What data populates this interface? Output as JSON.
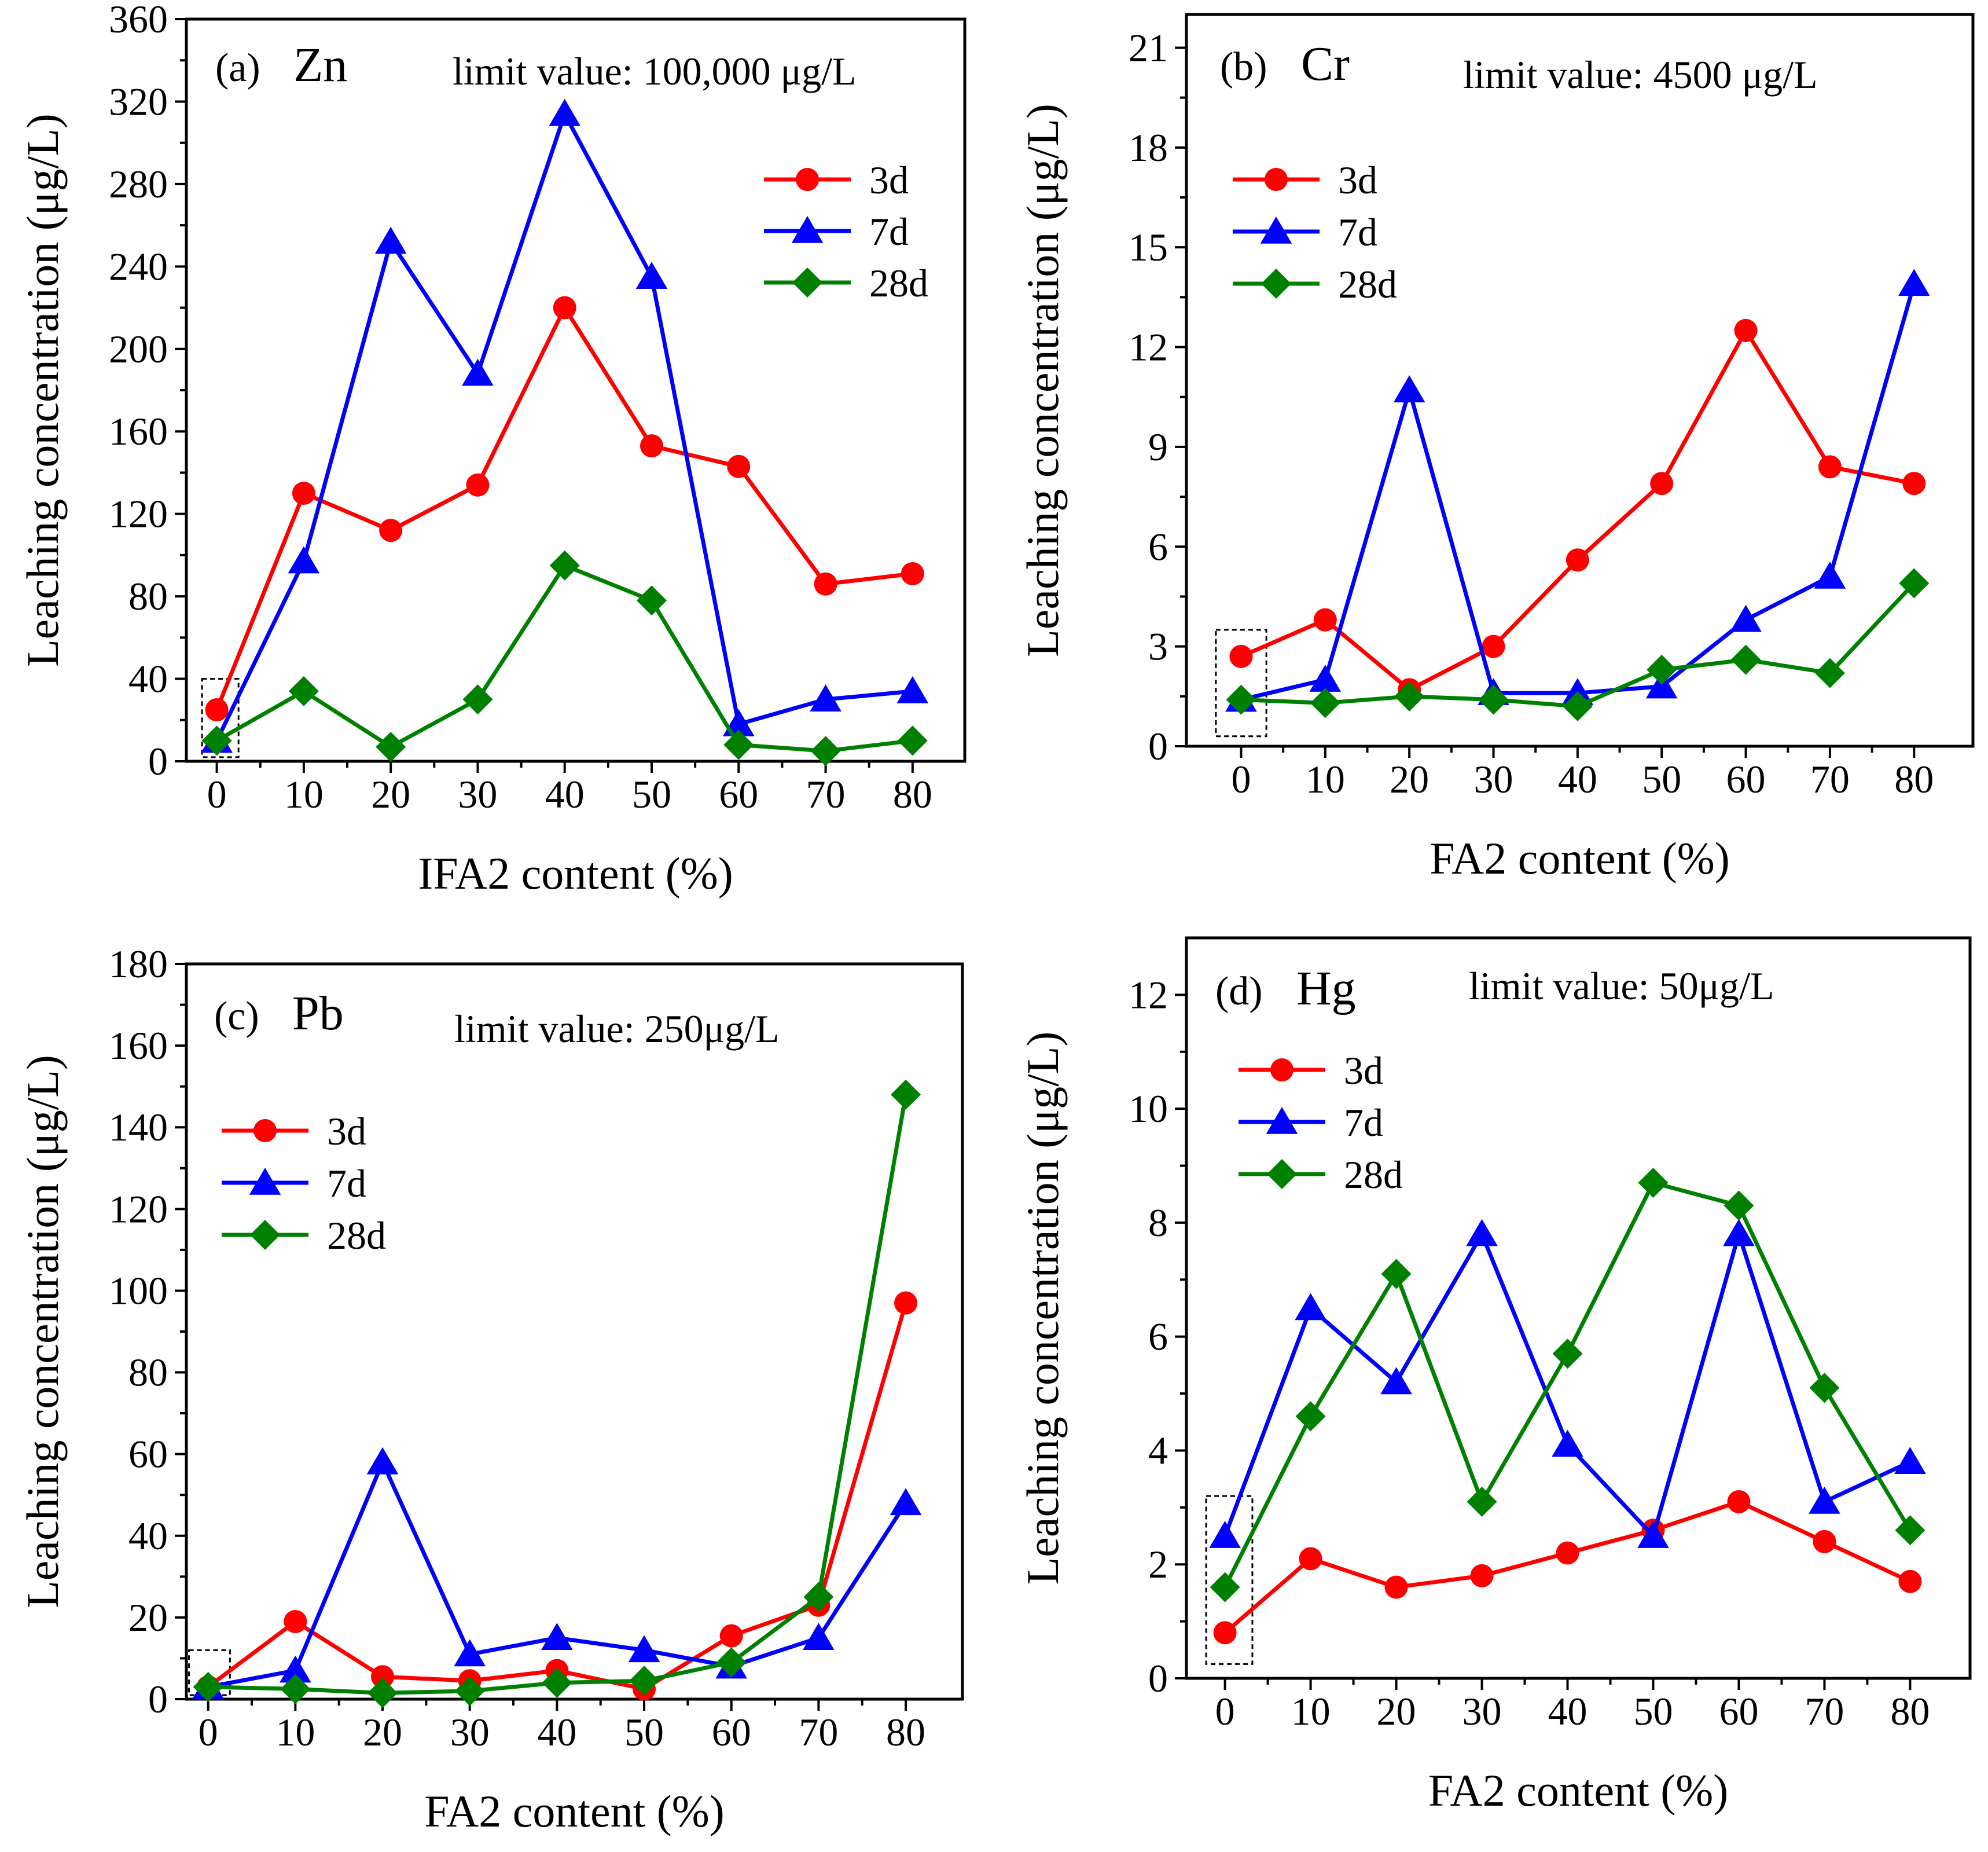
{
  "chart_data": [
    {
      "type": "line",
      "panel_label": "(a)",
      "element": "Zn",
      "limit_text": "limit value: 100,000 μg/L",
      "xlabel": "IFA2 content (%)",
      "ylabel": "Leaching concentration (μg/L)",
      "x": [
        0,
        10,
        20,
        30,
        40,
        50,
        60,
        70,
        80
      ],
      "x_ticks": [
        "0",
        "10",
        "20",
        "30",
        "40",
        "50",
        "60",
        "70",
        "80"
      ],
      "xlim": [
        -3.5,
        86
      ],
      "ylim": [
        0,
        360
      ],
      "y_ticks": [
        "0",
        "40",
        "80",
        "120",
        "160",
        "200",
        "240",
        "280",
        "320",
        "360"
      ],
      "y_minor": 20,
      "series": [
        {
          "name": "3d",
          "color": "#ff0000",
          "marker": "circle",
          "values": [
            25,
            130,
            112,
            134,
            220,
            153,
            143,
            86,
            91
          ]
        },
        {
          "name": "7d",
          "color": "#0000ff",
          "marker": "triangle",
          "values": [
            10,
            97,
            252,
            188,
            314,
            235,
            18,
            30,
            34
          ]
        },
        {
          "name": "28d",
          "color": "#008000",
          "marker": "diamond",
          "values": [
            10,
            34,
            7,
            30,
            95,
            78,
            8,
            5,
            10
          ]
        }
      ],
      "highlight_box": {
        "x": [
          -1.7,
          2.5
        ],
        "y": [
          2,
          40
        ]
      },
      "legend": "top-right"
    },
    {
      "type": "line",
      "panel_label": "(b)",
      "element": "Cr",
      "limit_text": "limit value: 4500 μg/L",
      "xlabel": "FA2 content (%)",
      "ylabel": "Leaching concentration (μg/L)",
      "x": [
        0,
        10,
        20,
        30,
        40,
        50,
        60,
        70,
        80
      ],
      "x_ticks": [
        "0",
        "10",
        "20",
        "30",
        "40",
        "50",
        "60",
        "70",
        "80"
      ],
      "xlim": [
        -6.5,
        87
      ],
      "ylim": [
        0,
        22
      ],
      "y_ticks": [
        "0",
        "3",
        "6",
        "9",
        "12",
        "15",
        "18",
        "21"
      ],
      "y_minor": 1.5,
      "series": [
        {
          "name": "3d",
          "color": "#ff0000",
          "marker": "circle",
          "values": [
            2.7,
            3.8,
            1.7,
            3.0,
            5.6,
            7.9,
            12.5,
            8.4,
            7.9
          ]
        },
        {
          "name": "7d",
          "color": "#0000ff",
          "marker": "triangle",
          "values": [
            1.4,
            2.0,
            10.7,
            1.6,
            1.6,
            1.8,
            3.8,
            5.1,
            13.9
          ]
        },
        {
          "name": "28d",
          "color": "#008000",
          "marker": "diamond",
          "values": [
            1.4,
            1.3,
            1.5,
            1.4,
            1.2,
            2.3,
            2.6,
            2.2,
            4.9
          ]
        }
      ],
      "highlight_box": {
        "x": [
          -3,
          3
        ],
        "y": [
          0.3,
          3.5
        ]
      },
      "legend": "top-left"
    },
    {
      "type": "line",
      "panel_label": "(c)",
      "element": "Pb",
      "limit_text": "limit value: 250μg/L",
      "xlabel": "FA2 content (%)",
      "ylabel": "Leaching concentration (μg/L)",
      "x": [
        0,
        10,
        20,
        30,
        40,
        50,
        60,
        70,
        80
      ],
      "x_ticks": [
        "0",
        "10",
        "20",
        "30",
        "40",
        "50",
        "60",
        "70",
        "80"
      ],
      "xlim": [
        -2.5,
        86.5
      ],
      "ylim": [
        0,
        180
      ],
      "y_ticks": [
        "0",
        "20",
        "40",
        "60",
        "80",
        "100",
        "120",
        "140",
        "160",
        "180"
      ],
      "y_minor": 10,
      "series": [
        {
          "name": "3d",
          "color": "#ff0000",
          "marker": "circle",
          "values": [
            3,
            19,
            5.5,
            4.5,
            7,
            2.5,
            15.5,
            23,
            97
          ]
        },
        {
          "name": "7d",
          "color": "#0000ff",
          "marker": "triangle",
          "values": [
            3,
            7,
            58,
            11,
            15,
            12,
            8,
            15,
            48
          ]
        },
        {
          "name": "28d",
          "color": "#008000",
          "marker": "diamond",
          "values": [
            3,
            2.5,
            1.5,
            2,
            4,
            4.5,
            9,
            25,
            148
          ]
        }
      ],
      "highlight_box": {
        "x": [
          -2.2,
          2.5
        ],
        "y": [
          1,
          12
        ]
      },
      "legend": "top-left"
    },
    {
      "type": "line",
      "panel_label": "(d)",
      "element": "Hg",
      "limit_text": "limit value: 50μg/L",
      "xlabel": "FA2 content (%)",
      "ylabel": "Leaching concentration (μg/L)",
      "x": [
        0,
        10,
        20,
        30,
        40,
        50,
        60,
        70,
        80
      ],
      "x_ticks": [
        "0",
        "10",
        "20",
        "30",
        "40",
        "50",
        "60",
        "70",
        "80"
      ],
      "xlim": [
        -4.5,
        87
      ],
      "ylim": [
        0,
        13
      ],
      "y_ticks": [
        "0",
        "2",
        "4",
        "6",
        "8",
        "10",
        "12"
      ],
      "y_minor": 1,
      "series": [
        {
          "name": "3d",
          "color": "#ff0000",
          "marker": "circle",
          "values": [
            0.8,
            2.1,
            1.6,
            1.8,
            2.2,
            2.6,
            3.1,
            2.4,
            1.7
          ]
        },
        {
          "name": "7d",
          "color": "#0000ff",
          "marker": "triangle",
          "values": [
            2.5,
            6.5,
            5.2,
            7.8,
            4.1,
            2.5,
            7.8,
            3.1,
            3.8
          ]
        },
        {
          "name": "28d",
          "color": "#008000",
          "marker": "diamond",
          "values": [
            1.6,
            4.6,
            7.1,
            3.1,
            5.7,
            8.7,
            8.3,
            5.1,
            2.6
          ]
        }
      ],
      "highlight_box": {
        "x": [
          -2.2,
          3.2
        ],
        "y": [
          0.25,
          3.2
        ]
      },
      "legend": "top-left"
    }
  ]
}
